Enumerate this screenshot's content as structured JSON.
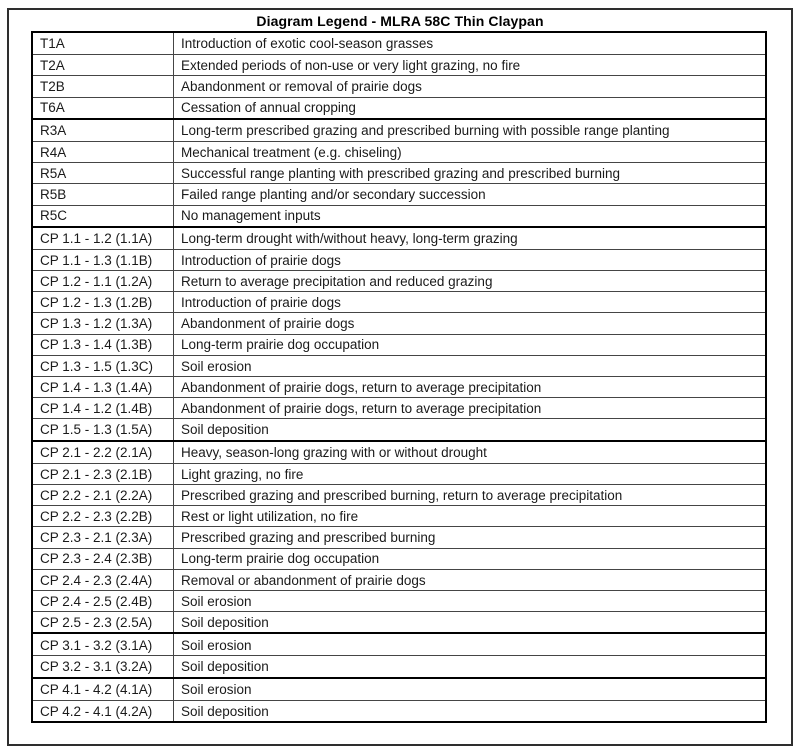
{
  "title": "Diagram Legend - MLRA 58C Thin Claypan",
  "colors": {
    "background": "#ffffff",
    "text": "#1a1a1a",
    "table_border_heavy": "#000000",
    "table_border_light": "#454545",
    "outer_frame": "#2e2e2e"
  },
  "table": {
    "groups": [
      {
        "name": "transitions",
        "rows": [
          {
            "code": "T1A",
            "description": "Introduction of exotic cool-season grasses"
          },
          {
            "code": "T2A",
            "description": "Extended periods of non-use or very light grazing, no fire"
          },
          {
            "code": "T2B",
            "description": "Abandonment or removal of prairie dogs"
          },
          {
            "code": "T6A",
            "description": "Cessation of annual cropping"
          }
        ]
      },
      {
        "name": "restoration-pathways",
        "rows": [
          {
            "code": "R3A",
            "description": "Long-term prescribed grazing and prescribed burning with possible range planting"
          },
          {
            "code": "R4A",
            "description": "Mechanical treatment (e.g. chiseling)"
          },
          {
            "code": "R5A",
            "description": "Successful range planting with prescribed grazing and prescribed burning"
          },
          {
            "code": "R5B",
            "description": "Failed range planting and/or secondary succession"
          },
          {
            "code": "R5C",
            "description": "No management inputs"
          }
        ]
      },
      {
        "name": "community-pathways-state-1",
        "rows": [
          {
            "code": "CP 1.1 - 1.2 (1.1A)",
            "description": "Long-term drought with/without heavy, long-term grazing"
          },
          {
            "code": "CP 1.1 - 1.3 (1.1B)",
            "description": "Introduction of prairie dogs"
          },
          {
            "code": "CP 1.2 - 1.1 (1.2A)",
            "description": "Return to average precipitation and reduced grazing"
          },
          {
            "code": "CP 1.2 - 1.3 (1.2B)",
            "description": "Introduction of prairie dogs"
          },
          {
            "code": "CP 1.3 - 1.2 (1.3A)",
            "description": "Abandonment of prairie dogs"
          },
          {
            "code": "CP 1.3 - 1.4 (1.3B)",
            "description": "Long-term prairie dog occupation"
          },
          {
            "code": "CP 1.3 - 1.5 (1.3C)",
            "description": "Soil erosion"
          },
          {
            "code": "CP 1.4 - 1.3 (1.4A)",
            "description": "Abandonment of prairie dogs, return to average precipitation"
          },
          {
            "code": "CP 1.4 - 1.2 (1.4B)",
            "description": "Abandonment of prairie dogs, return to average precipitation"
          },
          {
            "code": "CP 1.5 - 1.3 (1.5A)",
            "description": "Soil deposition"
          }
        ]
      },
      {
        "name": "community-pathways-state-2",
        "rows": [
          {
            "code": "CP 2.1 - 2.2 (2.1A)",
            "description": "Heavy, season-long grazing with or without drought"
          },
          {
            "code": "CP 2.1 - 2.3 (2.1B)",
            "description": "Light grazing, no fire"
          },
          {
            "code": "CP 2.2 - 2.1 (2.2A)",
            "description": "Prescribed grazing and prescribed burning, return to average precipitation"
          },
          {
            "code": "CP 2.2 - 2.3 (2.2B)",
            "description": "Rest or light utilization, no fire"
          },
          {
            "code": "CP 2.3 - 2.1 (2.3A)",
            "description": "Prescribed grazing and prescribed burning"
          },
          {
            "code": "CP 2.3 - 2.4 (2.3B)",
            "description": "Long-term prairie dog occupation"
          },
          {
            "code": "CP 2.4 - 2.3 (2.4A)",
            "description": "Removal or abandonment of prairie dogs"
          },
          {
            "code": "CP 2.4 - 2.5 (2.4B)",
            "description": "Soil erosion"
          },
          {
            "code": "CP 2.5 - 2.3 (2.5A)",
            "description": "Soil deposition"
          }
        ]
      },
      {
        "name": "community-pathways-state-3",
        "rows": [
          {
            "code": "CP 3.1 - 3.2 (3.1A)",
            "description": "Soil erosion"
          },
          {
            "code": "CP 3.2 - 3.1 (3.2A)",
            "description": "Soil deposition"
          }
        ]
      },
      {
        "name": "community-pathways-state-4",
        "rows": [
          {
            "code": "CP 4.1 - 4.2 (4.1A)",
            "description": "Soil erosion"
          },
          {
            "code": "CP 4.2 - 4.1 (4.2A)",
            "description": "Soil deposition"
          }
        ]
      }
    ]
  }
}
